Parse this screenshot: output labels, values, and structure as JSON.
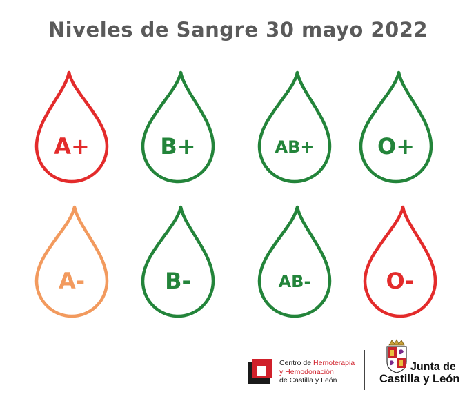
{
  "title": "Niveles de Sangre  30 mayo 2022",
  "colors": {
    "red": "#e32b2b",
    "green": "#23843a",
    "orange": "#f29a5e",
    "title": "#5a5a5a"
  },
  "drops": [
    {
      "label": "A+",
      "level": "red"
    },
    {
      "label": "B+",
      "level": "green"
    },
    {
      "label": "AB+",
      "level": "green"
    },
    {
      "label": "O+",
      "level": "green"
    },
    {
      "label": "A-",
      "level": "orange"
    },
    {
      "label": "B-",
      "level": "green"
    },
    {
      "label": "AB-",
      "level": "green"
    },
    {
      "label": "O-",
      "level": "red"
    }
  ],
  "footer": {
    "center_line1_prefix": "Centro de ",
    "center_line1_highlight": "Hemoterapia",
    "center_line2": "y Hemodonación",
    "center_line3": "de Castilla y León",
    "junta_line1": "Junta de",
    "junta_line2": "Castilla y León"
  }
}
